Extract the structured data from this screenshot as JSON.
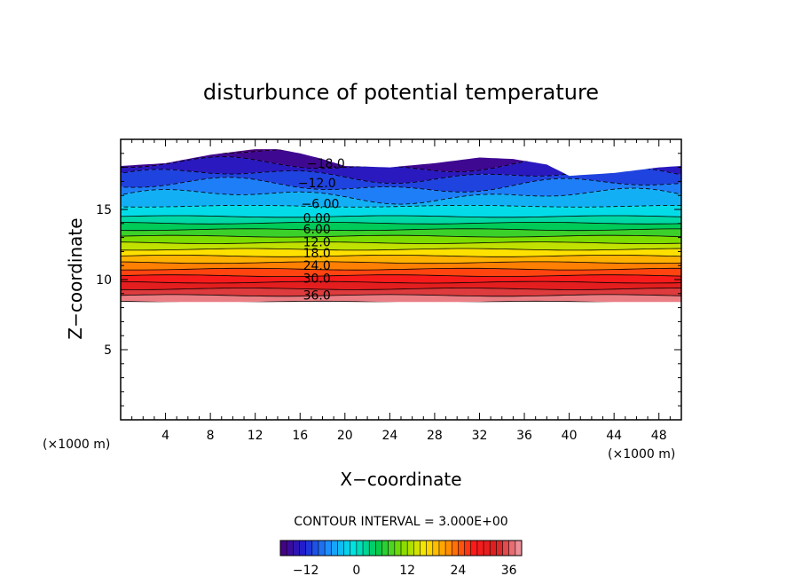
{
  "chart_data": {
    "type": "contour",
    "title": "disturbunce of potential temperature",
    "xlabel": "X−coordinate",
    "ylabel": "Z−coordinate",
    "x_unit_left": "(×1000 m)",
    "x_unit_right": "(×1000 m)",
    "xlim": [
      0,
      50
    ],
    "ylim": [
      0,
      20
    ],
    "x_ticks": [
      "4",
      "8",
      "12",
      "16",
      "20",
      "24",
      "28",
      "32",
      "36",
      "40",
      "44",
      "48"
    ],
    "y_ticks": [
      "5",
      "10",
      "15"
    ],
    "contour_interval_text": "CONTOUR INTERVAL = 3.000E+00",
    "contour_interval": 3.0,
    "value_range": [
      -18,
      39
    ],
    "colorbar_ticks": [
      "−12",
      "0",
      "12",
      "24",
      "36"
    ],
    "field_bottom_z": 8.4,
    "field_top_z": [
      [
        0,
        18.1
      ],
      [
        4,
        18.3
      ],
      [
        8,
        18.9
      ],
      [
        12,
        19.3
      ],
      [
        14,
        19.3
      ],
      [
        16,
        19.0
      ],
      [
        18,
        18.6
      ],
      [
        20,
        18.1
      ],
      [
        24,
        18.0
      ],
      [
        28,
        18.3
      ],
      [
        32,
        18.7
      ],
      [
        35,
        18.6
      ],
      [
        38,
        18.2
      ],
      [
        40,
        17.4
      ],
      [
        44,
        17.6
      ],
      [
        48,
        18.0
      ],
      [
        50,
        18.1
      ]
    ],
    "contour_labels": [
      {
        "text": "−18.0",
        "x": 18.3,
        "z": 18.3
      },
      {
        "text": "−12.0",
        "x": 17.5,
        "z": 16.9
      },
      {
        "text": "−6.00",
        "x": 17.8,
        "z": 15.4
      },
      {
        "text": "0.00",
        "x": 17.5,
        "z": 14.4
      },
      {
        "text": "6.00",
        "x": 17.5,
        "z": 13.6
      },
      {
        "text": "12.0",
        "x": 17.5,
        "z": 12.7
      },
      {
        "text": "18.0",
        "x": 17.5,
        "z": 11.9
      },
      {
        "text": "24.0",
        "x": 17.5,
        "z": 11.0
      },
      {
        "text": "30.0",
        "x": 17.5,
        "z": 10.1
      },
      {
        "text": "36.0",
        "x": 17.5,
        "z": 8.9
      }
    ],
    "colorbar_colors": [
      "#4a007a",
      "#2020d0",
      "#1e90ff",
      "#00e5e5",
      "#00c850",
      "#7ddc00",
      "#ffe600",
      "#ff8c00",
      "#ff1a1a",
      "#d82020",
      "#f0a0a8"
    ]
  }
}
